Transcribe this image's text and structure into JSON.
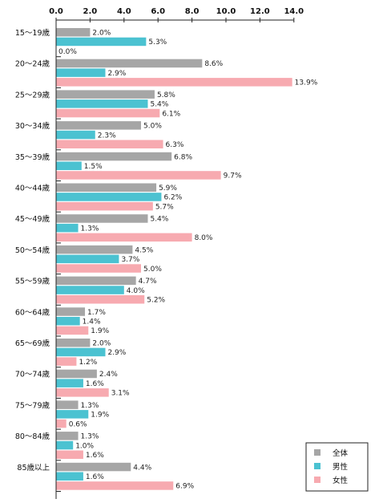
{
  "chart_data": {
    "type": "bar",
    "orientation": "horizontal",
    "title": "",
    "xlabel": "",
    "ylabel": "",
    "xlim": [
      0,
      14
    ],
    "x_ticks": [
      "0.0",
      "2.0",
      "4.0",
      "6.0",
      "8.0",
      "10.0",
      "12.0",
      "14.0"
    ],
    "x_axis_position": "top",
    "grid": false,
    "legend_position": "bottom-right",
    "value_suffix": "%",
    "categories": [
      "15～19歳",
      "20～24歳",
      "25～29歳",
      "30～34歳",
      "35～39歳",
      "40～44歳",
      "45～49歳",
      "50～54歳",
      "55～59歳",
      "60～64歳",
      "65～69歳",
      "70～74歳",
      "75～79歳",
      "80～84歳",
      "85歳以上"
    ],
    "series": [
      {
        "name": "全体",
        "color": "#a6a6a6",
        "values": [
          2.0,
          8.6,
          5.8,
          5.0,
          6.8,
          5.9,
          5.4,
          4.5,
          4.7,
          1.7,
          2.0,
          2.4,
          1.3,
          1.3,
          4.4
        ]
      },
      {
        "name": "男性",
        "color": "#4bc2d1",
        "values": [
          5.3,
          2.9,
          5.4,
          2.3,
          1.5,
          6.2,
          1.3,
          3.7,
          4.0,
          1.4,
          2.9,
          1.6,
          1.9,
          1.0,
          1.6
        ]
      },
      {
        "name": "女性",
        "color": "#f7aab0",
        "values": [
          0.0,
          13.9,
          6.1,
          6.3,
          9.7,
          5.7,
          8.0,
          5.0,
          5.2,
          1.9,
          1.2,
          3.1,
          0.6,
          1.6,
          6.9
        ]
      }
    ]
  }
}
